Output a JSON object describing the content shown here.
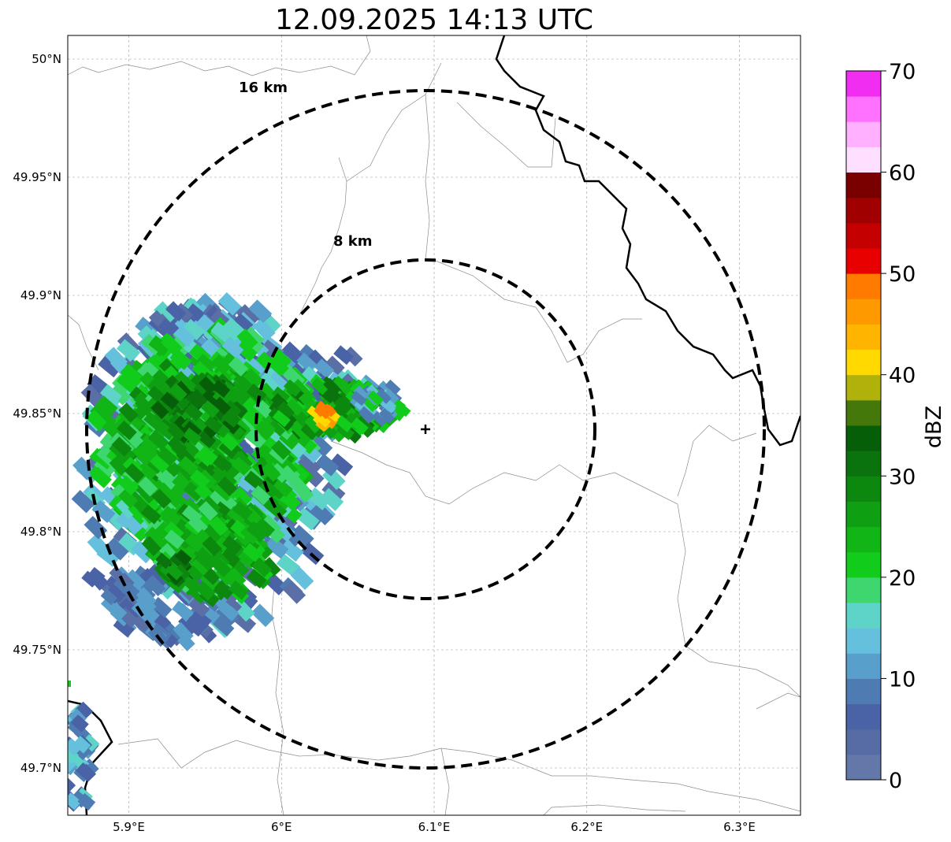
{
  "title": "12.09.2025 14:13 UTC",
  "map": {
    "lon_range": [
      5.86,
      6.34
    ],
    "lat_range": [
      49.68,
      50.01
    ],
    "x_ticks": [
      {
        "value": 5.9,
        "label": "5.9°E"
      },
      {
        "value": 6.0,
        "label": "6°E"
      },
      {
        "value": 6.1,
        "label": "6.1°E"
      },
      {
        "value": 6.2,
        "label": "6.2°E"
      },
      {
        "value": 6.3,
        "label": "6.3°E"
      }
    ],
    "y_ticks": [
      {
        "value": 50.0,
        "label": "50°N"
      },
      {
        "value": 49.95,
        "label": "49.95°N"
      },
      {
        "value": 49.9,
        "label": "49.9°N"
      },
      {
        "value": 49.85,
        "label": "49.85°N"
      },
      {
        "value": 49.8,
        "label": "49.8°N"
      },
      {
        "value": 49.75,
        "label": "49.75°N"
      },
      {
        "value": 49.7,
        "label": "49.7°N"
      }
    ],
    "gridlines": true,
    "radar_site": {
      "lon": 6.094,
      "lat": 49.844
    },
    "range_rings": [
      {
        "radius_km": 8,
        "label": "8 km"
      },
      {
        "radius_km": 16,
        "label": "16 km"
      }
    ]
  },
  "colorbar": {
    "label": "dBZ",
    "min": 0,
    "max": 70,
    "ticks": [
      "0",
      "10",
      "20",
      "30",
      "40",
      "50",
      "60",
      "70"
    ],
    "colors": [
      "#6377a8",
      "#576ba4",
      "#4a62a6",
      "#4e7cb2",
      "#599fcb",
      "#64c0dc",
      "#5ed4c8",
      "#3ed66e",
      "#12cc1c",
      "#11b515",
      "#0f9f13",
      "#0c880f",
      "#0a730d",
      "#075e09",
      "#45780a",
      "#b0b10a",
      "#ffd900",
      "#ffb400",
      "#ff9900",
      "#ff7b00",
      "#e80000",
      "#c50000",
      "#a00000",
      "#7a0000",
      "#ffdfff",
      "#ffb0ff",
      "#ff72ff",
      "#f22df2"
    ]
  }
}
